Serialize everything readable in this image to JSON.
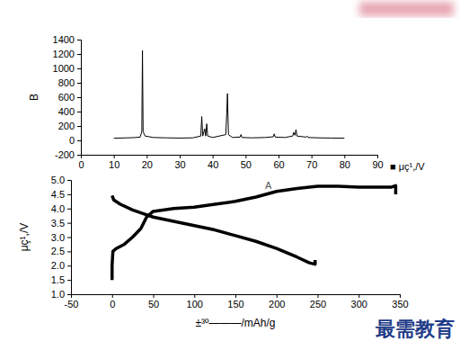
{
  "chart_data": [
    {
      "type": "line",
      "ylabel": "B",
      "xlim": [
        0,
        90
      ],
      "xticks": [
        0,
        10,
        20,
        30,
        40,
        50,
        60,
        70,
        80,
        90
      ],
      "ylim": [
        -200,
        1400
      ],
      "yticks": [
        -200,
        0,
        200,
        400,
        600,
        800,
        1000,
        1200,
        1400
      ],
      "annotations": [
        {
          "text": "■ μç¹,/V"
        }
      ],
      "series": [
        {
          "color": "#000000",
          "line_style": "solid",
          "x": [
            10,
            12,
            14,
            16,
            18,
            18.5,
            18.7,
            18.9,
            19.5,
            22,
            26,
            30,
            34,
            36.4,
            36.7,
            37.0,
            37.6,
            37.9,
            38.2,
            38.5,
            40,
            44.0,
            44.3,
            44.5,
            44.8,
            46,
            48.3,
            48.6,
            48.9,
            52,
            56,
            58.4,
            58.7,
            59.0,
            62,
            64.3,
            64.6,
            65.0,
            65.3,
            65.6,
            68.4,
            68.7,
            69.0,
            72,
            76,
            80
          ],
          "values": [
            30,
            32,
            35,
            38,
            45,
            120,
            1250,
            120,
            60,
            40,
            35,
            32,
            35,
            60,
            330,
            60,
            160,
            60,
            230,
            60,
            40,
            80,
            390,
            650,
            80,
            40,
            45,
            80,
            40,
            35,
            40,
            50,
            90,
            45,
            40,
            60,
            110,
            70,
            150,
            60,
            45,
            60,
            40,
            35,
            32,
            30
          ]
        }
      ]
    },
    {
      "type": "line",
      "ylabel": "μç¹,/V",
      "xlabel": "±³º———/mAh/g",
      "xlim": [
        -50,
        350
      ],
      "xticks": [
        -50,
        0,
        50,
        100,
        150,
        200,
        250,
        300,
        350
      ],
      "ylim": [
        1.0,
        5.0
      ],
      "yticks": [
        {
          "value": 1.0,
          "label": "1.0"
        },
        {
          "value": 1.5,
          "label": "1.5"
        },
        {
          "value": 2.0,
          "label": "2.0"
        },
        {
          "value": 2.5,
          "label": "2.5"
        },
        {
          "value": 3.0,
          "label": "3.0"
        },
        {
          "value": 3.5,
          "label": "3.5"
        },
        {
          "value": 4.0,
          "label": "4.0"
        },
        {
          "value": 4.5,
          "label": "4.5"
        },
        {
          "value": 5.0,
          "label": "5.0"
        }
      ],
      "annotations": [
        {
          "text": "A",
          "x": 190,
          "y": 4.7
        }
      ],
      "series": [
        {
          "color": "#000000",
          "line_style": "bold",
          "x": [
            0,
            0,
            1,
            5,
            15,
            25,
            35,
            42,
            50,
            75,
            100,
            125,
            150,
            175,
            200,
            225,
            250,
            275,
            300,
            340,
            345,
            345
          ],
          "values": [
            1.5,
            2.0,
            2.5,
            2.6,
            2.75,
            3.0,
            3.3,
            3.7,
            3.9,
            4.0,
            4.05,
            4.15,
            4.25,
            4.4,
            4.6,
            4.7,
            4.78,
            4.78,
            4.75,
            4.75,
            4.8,
            4.5
          ]
        },
        {
          "color": "#000000",
          "line_style": "bold",
          "x": [
            0,
            2,
            10,
            25,
            40,
            50,
            75,
            100,
            125,
            150,
            175,
            200,
            225,
            240,
            247,
            247
          ],
          "values": [
            4.45,
            4.3,
            4.15,
            3.95,
            3.8,
            3.7,
            3.55,
            3.4,
            3.25,
            3.05,
            2.85,
            2.6,
            2.3,
            2.1,
            2.05,
            2.2
          ]
        }
      ]
    }
  ],
  "watermark": "最需教育"
}
